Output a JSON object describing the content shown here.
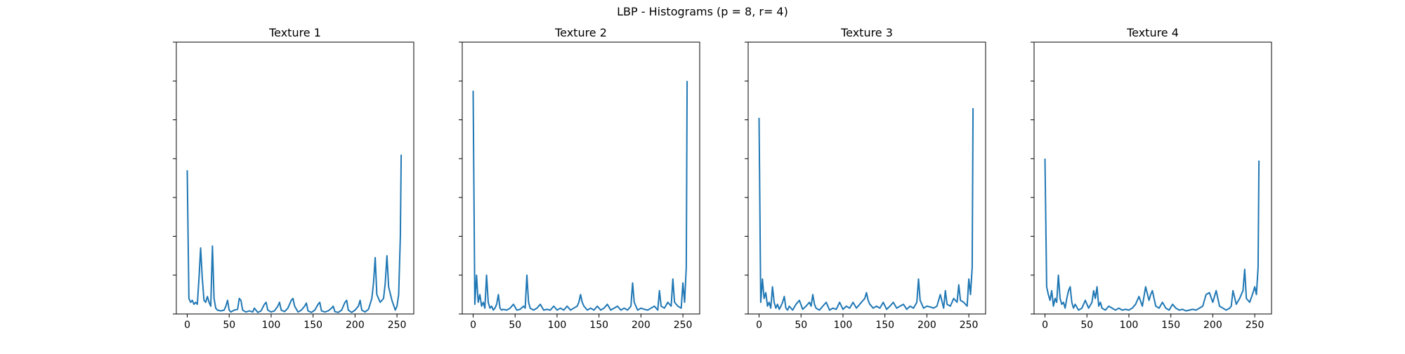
{
  "figure": {
    "suptitle": "LBP - Histograms (p = 8, r= 4)",
    "line_color": "#1f77b4"
  },
  "chart_data": [
    {
      "type": "line",
      "title": "Texture 1",
      "xlabel": "",
      "ylabel": "",
      "xlim": [
        -13,
        270
      ],
      "ylim": [
        0,
        7
      ],
      "x_ticks": [
        0,
        50,
        100,
        150,
        200,
        250
      ],
      "y_ticks": [
        0,
        1,
        2,
        3,
        4,
        5,
        6,
        7
      ],
      "y_tick_labels_visible": false,
      "grid": false,
      "series": [
        {
          "x": [
            0,
            2,
            4,
            6,
            8,
            10,
            12,
            14,
            16,
            18,
            20,
            22,
            24,
            26,
            28,
            30,
            32,
            34,
            36,
            40,
            44,
            46,
            48,
            50,
            52,
            56,
            60,
            62,
            64,
            66,
            70,
            74,
            78,
            80,
            84,
            88,
            92,
            94,
            96,
            100,
            104,
            108,
            110,
            112,
            116,
            120,
            124,
            126,
            128,
            132,
            136,
            140,
            142,
            144,
            148,
            152,
            156,
            158,
            160,
            164,
            168,
            172,
            174,
            176,
            180,
            184,
            188,
            190,
            192,
            196,
            200,
            204,
            206,
            208,
            212,
            216,
            220,
            222,
            224,
            226,
            230,
            234,
            236,
            238,
            240,
            244,
            248,
            250,
            252,
            254,
            255
          ],
          "y": [
            3.7,
            0.4,
            0.3,
            0.35,
            0.25,
            0.3,
            0.25,
            0.9,
            1.7,
            0.9,
            0.35,
            0.3,
            0.45,
            0.3,
            0.2,
            1.75,
            0.4,
            0.15,
            0.1,
            0.08,
            0.1,
            0.2,
            0.35,
            0.1,
            0.05,
            0.1,
            0.12,
            0.4,
            0.35,
            0.1,
            0.05,
            0.08,
            0.05,
            0.15,
            0.04,
            0.08,
            0.25,
            0.3,
            0.1,
            0.05,
            0.08,
            0.2,
            0.3,
            0.1,
            0.06,
            0.15,
            0.35,
            0.4,
            0.2,
            0.05,
            0.1,
            0.2,
            0.28,
            0.08,
            0.04,
            0.1,
            0.25,
            0.3,
            0.08,
            0.05,
            0.08,
            0.15,
            0.2,
            0.06,
            0.04,
            0.1,
            0.3,
            0.35,
            0.1,
            0.04,
            0.1,
            0.2,
            0.35,
            0.1,
            0.05,
            0.12,
            0.4,
            0.8,
            1.45,
            0.5,
            0.3,
            0.4,
            0.8,
            1.5,
            0.7,
            0.35,
            0.1,
            0.2,
            0.5,
            2.0,
            4.1
          ]
        }
      ]
    },
    {
      "type": "line",
      "title": "Texture 2",
      "xlabel": "",
      "ylabel": "",
      "xlim": [
        -13,
        270
      ],
      "ylim": [
        0,
        7
      ],
      "x_ticks": [
        0,
        50,
        100,
        150,
        200,
        250
      ],
      "y_ticks": [
        0,
        1,
        2,
        3,
        4,
        5,
        6,
        7
      ],
      "y_tick_labels_visible": false,
      "grid": false,
      "series": [
        {
          "x": [
            0,
            2,
            4,
            6,
            8,
            10,
            12,
            14,
            16,
            18,
            20,
            22,
            24,
            26,
            28,
            30,
            32,
            34,
            36,
            40,
            44,
            48,
            52,
            56,
            60,
            62,
            64,
            66,
            68,
            72,
            76,
            80,
            84,
            88,
            92,
            96,
            100,
            104,
            108,
            112,
            116,
            120,
            124,
            126,
            128,
            130,
            132,
            136,
            140,
            144,
            148,
            152,
            156,
            160,
            164,
            168,
            172,
            176,
            180,
            184,
            188,
            190,
            192,
            196,
            200,
            204,
            208,
            212,
            216,
            220,
            222,
            224,
            228,
            232,
            236,
            238,
            240,
            244,
            248,
            250,
            252,
            254,
            255
          ],
          "y": [
            5.75,
            0.25,
            1.0,
            0.3,
            0.5,
            0.2,
            0.3,
            0.15,
            1.0,
            0.3,
            0.15,
            0.2,
            0.1,
            0.15,
            0.25,
            0.5,
            0.15,
            0.1,
            0.12,
            0.1,
            0.15,
            0.25,
            0.1,
            0.12,
            0.2,
            0.15,
            1.0,
            0.3,
            0.15,
            0.1,
            0.15,
            0.25,
            0.1,
            0.12,
            0.1,
            0.2,
            0.1,
            0.15,
            0.1,
            0.2,
            0.1,
            0.15,
            0.2,
            0.3,
            0.5,
            0.3,
            0.2,
            0.1,
            0.15,
            0.1,
            0.2,
            0.1,
            0.15,
            0.25,
            0.1,
            0.15,
            0.2,
            0.1,
            0.15,
            0.1,
            0.2,
            0.8,
            0.3,
            0.1,
            0.15,
            0.12,
            0.1,
            0.15,
            0.2,
            0.1,
            0.6,
            0.2,
            0.15,
            0.3,
            0.2,
            0.9,
            0.3,
            0.2,
            0.15,
            0.8,
            0.3,
            1.2,
            6.0
          ]
        }
      ]
    },
    {
      "type": "line",
      "title": "Texture 3",
      "xlabel": "",
      "ylabel": "",
      "xlim": [
        -13,
        270
      ],
      "ylim": [
        0,
        7
      ],
      "x_ticks": [
        0,
        50,
        100,
        150,
        200,
        250
      ],
      "y_ticks": [
        0,
        1,
        2,
        3,
        4,
        5,
        6,
        7
      ],
      "y_tick_labels_visible": false,
      "grid": false,
      "series": [
        {
          "x": [
            0,
            2,
            4,
            6,
            8,
            10,
            12,
            14,
            16,
            18,
            20,
            22,
            24,
            26,
            28,
            30,
            32,
            34,
            36,
            40,
            44,
            48,
            52,
            56,
            60,
            62,
            64,
            66,
            68,
            72,
            76,
            80,
            84,
            88,
            92,
            96,
            100,
            104,
            108,
            112,
            116,
            120,
            124,
            126,
            128,
            130,
            132,
            136,
            140,
            144,
            148,
            152,
            156,
            160,
            164,
            168,
            172,
            176,
            180,
            184,
            188,
            190,
            192,
            196,
            200,
            204,
            208,
            212,
            216,
            220,
            222,
            224,
            228,
            232,
            236,
            238,
            240,
            244,
            248,
            250,
            252,
            254,
            255
          ],
          "y": [
            5.05,
            0.3,
            0.9,
            0.4,
            0.55,
            0.2,
            0.3,
            0.15,
            0.7,
            0.3,
            0.15,
            0.25,
            0.12,
            0.2,
            0.3,
            0.45,
            0.15,
            0.1,
            0.2,
            0.1,
            0.25,
            0.35,
            0.12,
            0.2,
            0.3,
            0.2,
            0.5,
            0.25,
            0.15,
            0.1,
            0.2,
            0.3,
            0.1,
            0.15,
            0.12,
            0.3,
            0.12,
            0.2,
            0.15,
            0.3,
            0.15,
            0.25,
            0.35,
            0.4,
            0.55,
            0.35,
            0.25,
            0.15,
            0.2,
            0.15,
            0.3,
            0.12,
            0.2,
            0.3,
            0.15,
            0.2,
            0.25,
            0.12,
            0.2,
            0.15,
            0.3,
            0.9,
            0.35,
            0.15,
            0.2,
            0.18,
            0.15,
            0.2,
            0.5,
            0.15,
            0.6,
            0.25,
            0.2,
            0.4,
            0.3,
            0.75,
            0.35,
            0.3,
            0.2,
            0.9,
            0.5,
            1.2,
            5.3
          ]
        }
      ]
    },
    {
      "type": "line",
      "title": "Texture 4",
      "xlabel": "",
      "ylabel": "",
      "xlim": [
        -13,
        270
      ],
      "ylim": [
        0,
        7
      ],
      "x_ticks": [
        0,
        50,
        100,
        150,
        200,
        250
      ],
      "y_ticks": [
        0,
        1,
        2,
        3,
        4,
        5,
        6,
        7
      ],
      "y_tick_labels_visible": false,
      "grid": false,
      "series": [
        {
          "x": [
            0,
            2,
            4,
            6,
            8,
            10,
            12,
            14,
            16,
            18,
            20,
            22,
            24,
            26,
            28,
            30,
            32,
            34,
            36,
            40,
            44,
            48,
            52,
            56,
            58,
            60,
            62,
            64,
            66,
            68,
            72,
            76,
            80,
            84,
            88,
            92,
            96,
            100,
            104,
            108,
            112,
            116,
            120,
            124,
            126,
            128,
            130,
            132,
            136,
            140,
            144,
            148,
            152,
            156,
            160,
            164,
            168,
            172,
            176,
            180,
            184,
            188,
            192,
            196,
            200,
            204,
            208,
            212,
            216,
            220,
            222,
            224,
            228,
            232,
            236,
            238,
            240,
            244,
            248,
            250,
            252,
            254,
            255
          ],
          "y": [
            4.0,
            0.7,
            0.5,
            0.35,
            0.6,
            0.2,
            0.4,
            0.3,
            1.0,
            0.4,
            0.25,
            0.3,
            0.15,
            0.4,
            0.6,
            0.7,
            0.3,
            0.15,
            0.25,
            0.1,
            0.15,
            0.35,
            0.15,
            0.3,
            0.6,
            0.4,
            0.7,
            0.2,
            0.3,
            0.15,
            0.1,
            0.2,
            0.15,
            0.1,
            0.15,
            0.1,
            0.12,
            0.1,
            0.15,
            0.25,
            0.45,
            0.2,
            0.7,
            0.35,
            0.5,
            0.6,
            0.4,
            0.2,
            0.15,
            0.3,
            0.15,
            0.1,
            0.25,
            0.15,
            0.1,
            0.12,
            0.08,
            0.1,
            0.12,
            0.1,
            0.15,
            0.2,
            0.5,
            0.55,
            0.3,
            0.6,
            0.2,
            0.15,
            0.1,
            0.15,
            0.2,
            0.6,
            0.25,
            0.4,
            0.6,
            1.15,
            0.4,
            0.3,
            0.55,
            0.7,
            0.5,
            1.2,
            3.95
          ]
        }
      ]
    }
  ]
}
